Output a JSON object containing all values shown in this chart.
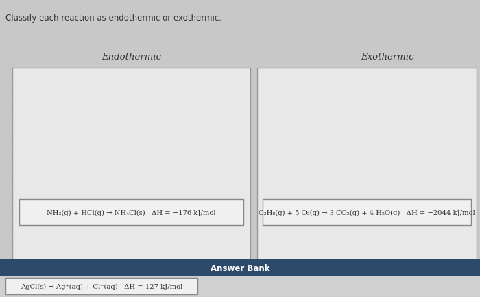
{
  "title": "Classify each reaction as endothermic or exothermic.",
  "bg_color": "#c8c8c8",
  "header_left": "Endothermic",
  "header_right": "Exothermic",
  "endo_reaction": "NH₃(g) + HCl(g) → NH₄Cl(s)   ΔH = −176 kJ/mol",
  "exo_reaction": "C₃H₈(g) + 5 O₂(g) → 3 CO₂(g) + 4 H₂O(g)   ΔH = −2044 kJ/mol",
  "answer_bank_label": "Answer Bank",
  "answer_reaction": "AgCl(s) → Ag⁺(aq) + Cl⁻(aq)   ΔH = 127 kJ/mol",
  "panel_bg": "#e8e8e8",
  "panel_border": "#999999",
  "box_bg": "#f0f0f0",
  "box_border": "#888888",
  "answer_bar_color": "#2d4a6b",
  "answer_bar_text_color": "#ffffff",
  "text_color": "#333333",
  "answer_area_bg": "#d0d0d0",
  "title_fontsize": 8.5,
  "header_fontsize": 9.5,
  "reaction_fontsize": 7.2,
  "answer_bank_fontsize": 8.5
}
